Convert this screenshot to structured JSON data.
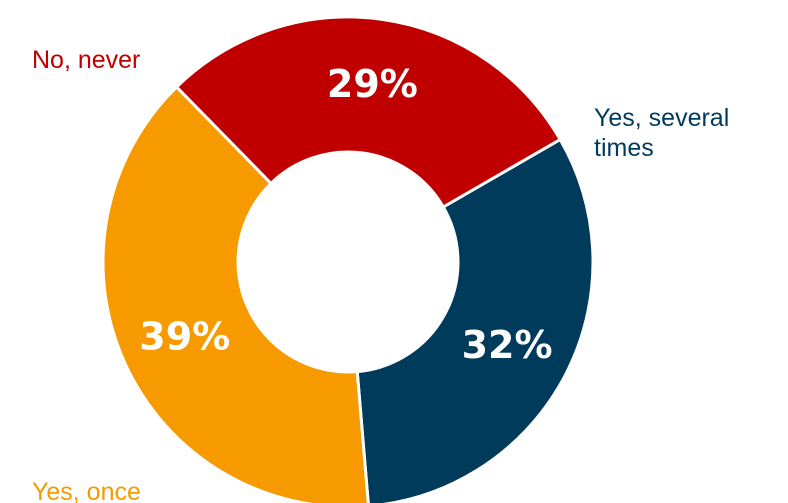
{
  "chart_data": {
    "type": "pie",
    "variant": "donut",
    "title": "",
    "categories": [
      "Yes, several times",
      "Yes, once",
      "No, never"
    ],
    "values": [
      32,
      39,
      29
    ],
    "value_labels": [
      "32%",
      "39%",
      "29%"
    ],
    "label_lines": [
      [
        "Yes, several",
        "times"
      ],
      [
        "Yes, once"
      ],
      [
        "No, never"
      ]
    ],
    "colors": [
      "#003b5c",
      "#f79a00",
      "#c00000"
    ],
    "legend": "none"
  }
}
